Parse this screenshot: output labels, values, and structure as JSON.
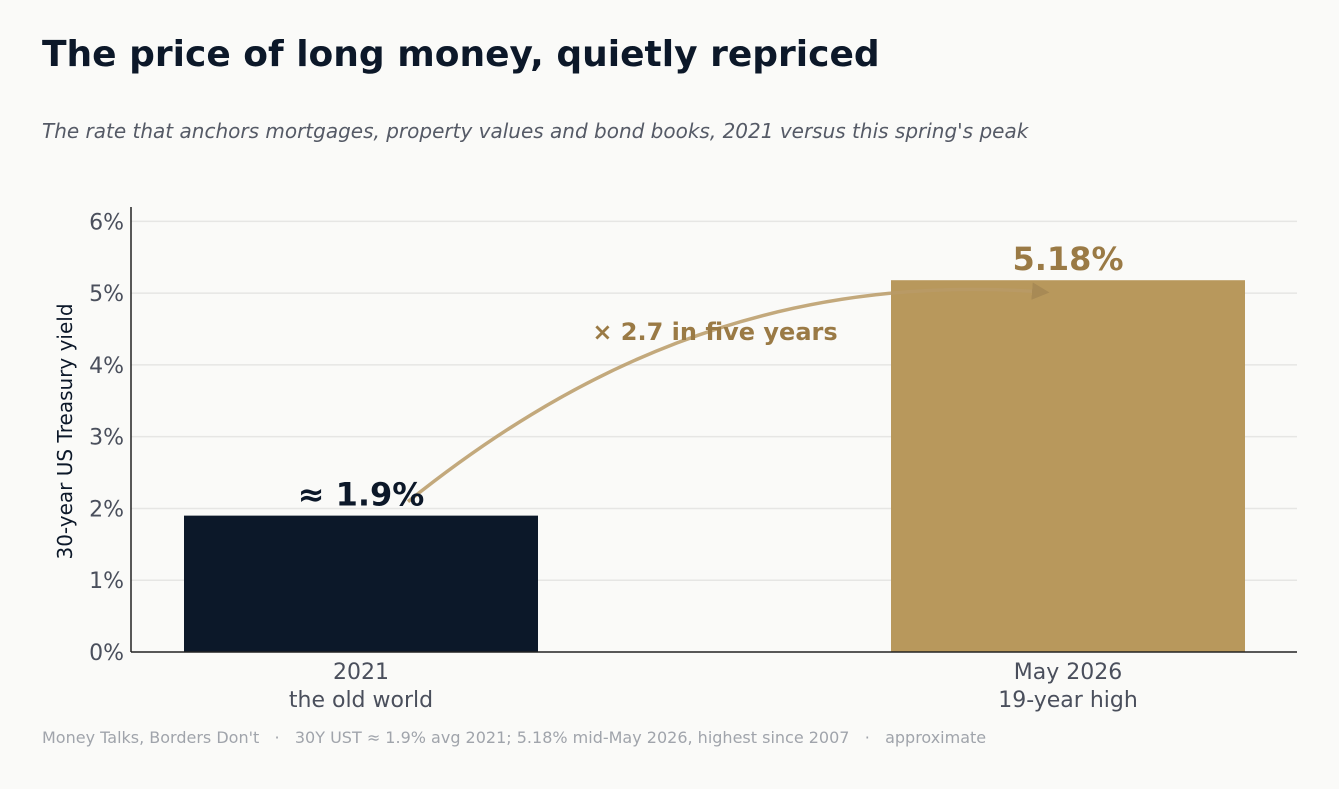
{
  "title": "The price of long money, quietly repriced",
  "subtitle": "The rate that anchors mortgages, property values and bond books, 2021 versus this spring's peak",
  "footer": "Money Talks, Borders Don't   ·   30Y UST ≈ 1.9% avg 2021; 5.18% mid-May 2026, highest since 2007   ·   approximate",
  "colors": {
    "bar_2021": "#0c1829",
    "bar_2026": "#b8985c",
    "accent": "#9a7a45",
    "arrow": "#b99a66",
    "axis": "#222222",
    "grid": "#e6e6e4"
  },
  "chart_data": {
    "type": "bar",
    "categories": [
      [
        "2021",
        "the old world"
      ],
      [
        "May 2026",
        "19-year high"
      ]
    ],
    "values": [
      1.9,
      5.18
    ],
    "value_labels": [
      "≈ 1.9%",
      "5.18%"
    ],
    "ylabel": "30-year US Treasury yield",
    "ylim": [
      0,
      6.2
    ],
    "yticks": [
      0,
      1,
      2,
      3,
      4,
      5,
      6
    ],
    "ytick_labels": [
      "0%",
      "1%",
      "2%",
      "3%",
      "4%",
      "5%",
      "6%"
    ],
    "grid": true,
    "annotation": "× 2.7 in five years"
  }
}
